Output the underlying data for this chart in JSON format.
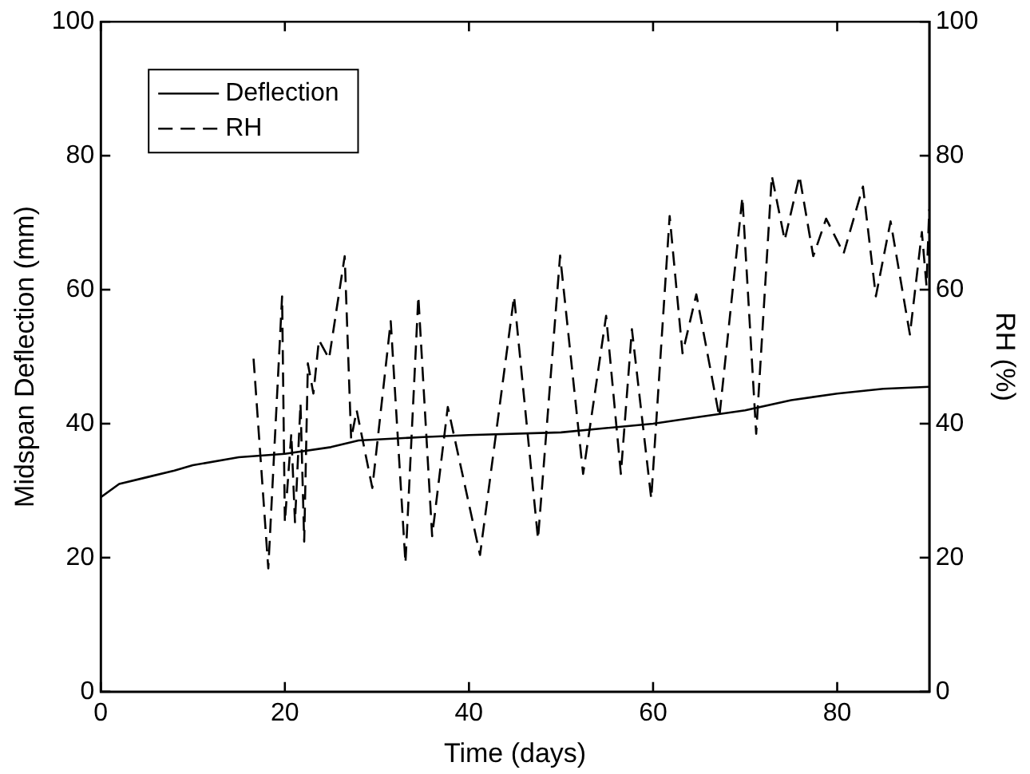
{
  "chart_data": {
    "type": "line",
    "xlabel": "Time (days)",
    "ylabel": "Midspan Deflection (mm)",
    "y2label": "RH (%)",
    "xlim": [
      0,
      90
    ],
    "xticks": [
      0,
      20,
      40,
      60,
      80
    ],
    "ylim": [
      0,
      100
    ],
    "yticks": [
      0,
      20,
      40,
      60,
      80,
      100
    ],
    "y2lim": [
      0,
      100
    ],
    "y2ticks": [
      0,
      20,
      40,
      60,
      80,
      100
    ],
    "grid": false,
    "legend": "top left",
    "marker": "none",
    "series": [
      {
        "name": "Deflection",
        "color": "#000000",
        "line_style": "solid",
        "x": [
          0,
          2,
          5,
          8,
          10,
          15,
          20,
          25,
          28,
          35,
          40,
          50,
          60,
          65,
          70,
          75,
          80,
          85,
          90
        ],
        "values": [
          29,
          31,
          32,
          33,
          33.8,
          35,
          35.5,
          36.5,
          37.5,
          38,
          38.3,
          38.7,
          40,
          41,
          42,
          43.5,
          44.5,
          45.2,
          45.5
        ]
      },
      {
        "name": "RH",
        "color": "#000000",
        "line_style": "dashed",
        "axis": "y2",
        "x": [
          16.6,
          18.2,
          19.7,
          20,
          20.7,
          21.1,
          21.7,
          22.1,
          22.5,
          23.1,
          23.7,
          24.8,
          26.5,
          27.2,
          27.8,
          29.5,
          31.5,
          33.1,
          34.5,
          36,
          37.7,
          41.2,
          44.9,
          47.5,
          49.9,
          52.4,
          54.9,
          56.5,
          57.7,
          59.8,
          61.8,
          63.2,
          64.7,
          67.2,
          69.7,
          71.2,
          72.9,
          74.3,
          75.9,
          77.4,
          78.8,
          80.7,
          82.8,
          84.2,
          85.8,
          87.9,
          89.2,
          89.7,
          90
        ],
        "values": [
          49.7,
          18.4,
          59,
          25.3,
          38.5,
          25.3,
          43,
          22.4,
          49,
          44.5,
          52.5,
          49.7,
          65,
          37.7,
          42,
          30.4,
          55.3,
          19.2,
          59,
          23.2,
          42.5,
          20.4,
          59,
          22.8,
          65.1,
          32.5,
          56.1,
          32.5,
          54.1,
          28.8,
          71,
          50.5,
          59.3,
          41,
          73.8,
          38.5,
          77,
          67.4,
          77,
          65,
          70.6,
          65.4,
          75.4,
          59,
          70.2,
          53.3,
          68.6,
          60.6,
          72
        ]
      }
    ]
  }
}
